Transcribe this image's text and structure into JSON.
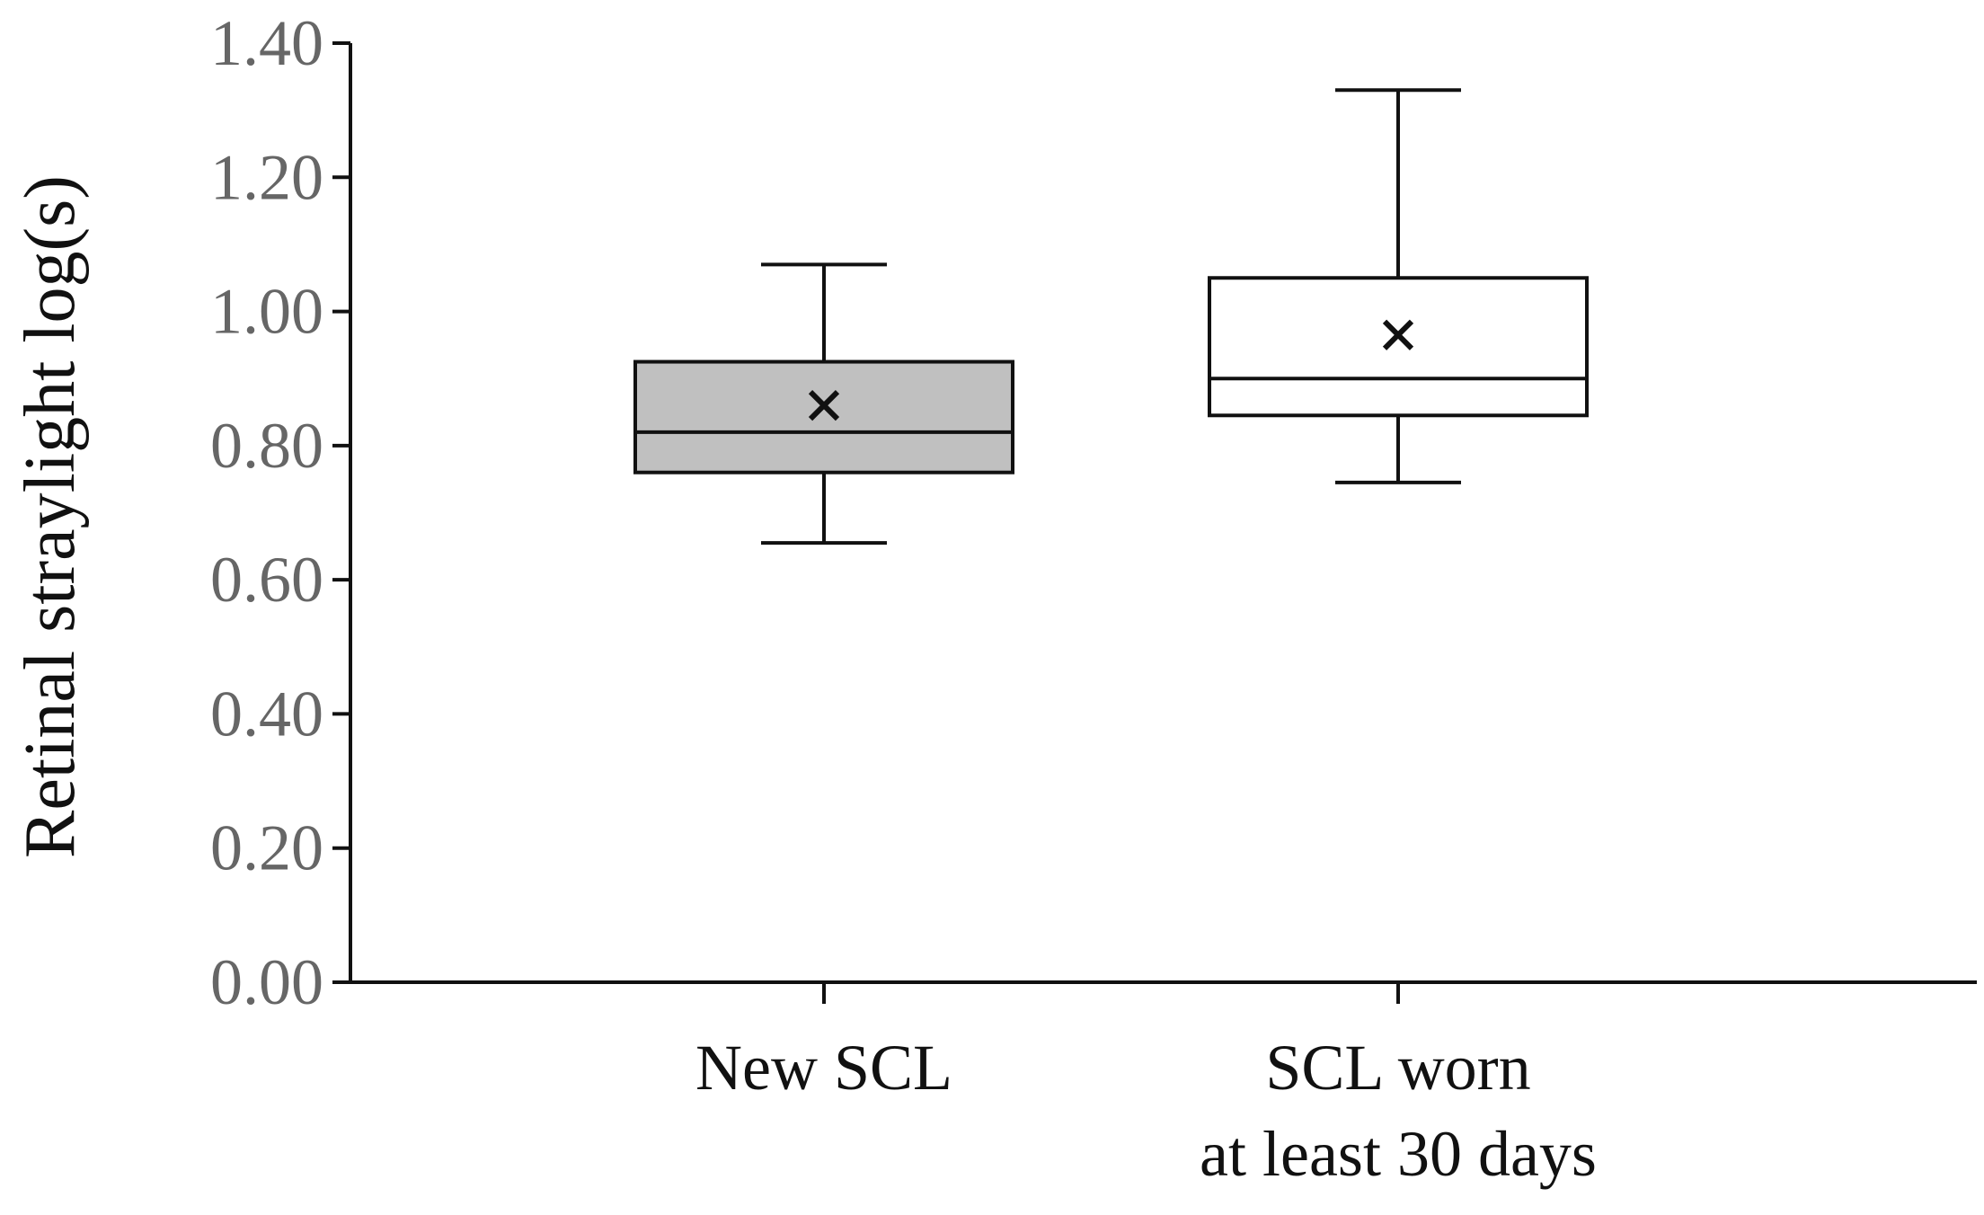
{
  "chart_data": {
    "type": "box",
    "title": "",
    "ylabel": "Retinal straylight log(s)",
    "xlabel": "",
    "ylim": [
      0,
      1.4
    ],
    "yticks": [
      "0.00",
      "0.20",
      "0.40",
      "0.60",
      "0.80",
      "1.00",
      "1.20",
      "1.40"
    ],
    "categories": [
      {
        "label_lines": [
          "New SCL"
        ],
        "fill": "#c0c0c0",
        "min": 0.655,
        "q1": 0.76,
        "median": 0.82,
        "q3": 0.925,
        "max": 1.07,
        "mean": 0.86
      },
      {
        "label_lines": [
          "SCL worn",
          "at least 30 days"
        ],
        "fill": "#ffffff",
        "min": 0.745,
        "q1": 0.845,
        "median": 0.9,
        "q3": 1.05,
        "max": 1.33,
        "mean": 0.965
      }
    ],
    "grid": false,
    "mean_marker": "x"
  }
}
